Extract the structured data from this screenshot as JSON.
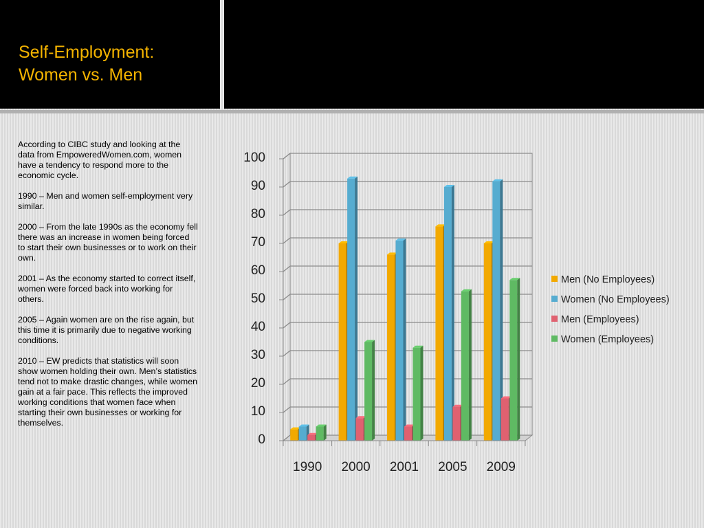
{
  "slide": {
    "title_lines": [
      "Self-Employment:",
      "Women vs. Men"
    ],
    "paragraphs": [
      "According to CIBC study and looking at the data from EmpoweredWomen.com, women have a tendency to respond more to the economic cycle.",
      "1990 – Men and women self-employment very similar.",
      "2000 – From the late 1990s as the economy fell there was an increase in women being forced to start their own businesses or to work on their own.",
      "2001 – As the economy started to correct itself, women were forced back into working for others.",
      "2005 – Again women are on the rise again, but this time it is primarily due to negative working conditions.",
      "2010 – EW predicts that statistics will soon show women holding their own. Men’s statistics tend not to make drastic changes, while women gain at a fair pace.  This reflects the improved working conditions that women face when starting their own businesses or working for themselves."
    ]
  },
  "colors": {
    "title": "#f5b400",
    "header_background": "#000000"
  },
  "chart_data": {
    "type": "bar",
    "title": "",
    "xlabel": "",
    "ylabel": "",
    "categories": [
      "1990",
      "2000",
      "2001",
      "2005",
      "2009"
    ],
    "ylim": [
      0,
      100
    ],
    "yticks": [
      0,
      10,
      20,
      30,
      40,
      50,
      60,
      70,
      80,
      90,
      100
    ],
    "grid": true,
    "three_d": true,
    "legend_position": "right",
    "series": [
      {
        "name": "Men (No Employees)",
        "color": "#f2a900",
        "values": [
          4,
          70,
          66,
          76,
          70
        ]
      },
      {
        "name": "Women (No Employees)",
        "color": "#56acd0",
        "values": [
          5,
          93,
          71,
          90,
          92
        ]
      },
      {
        "name": "Men (Employees)",
        "color": "#e06170",
        "values": [
          2,
          8,
          5,
          12,
          15
        ]
      },
      {
        "name": "Women (Employees)",
        "color": "#5fba63",
        "values": [
          5,
          35,
          33,
          53,
          57
        ]
      }
    ]
  }
}
